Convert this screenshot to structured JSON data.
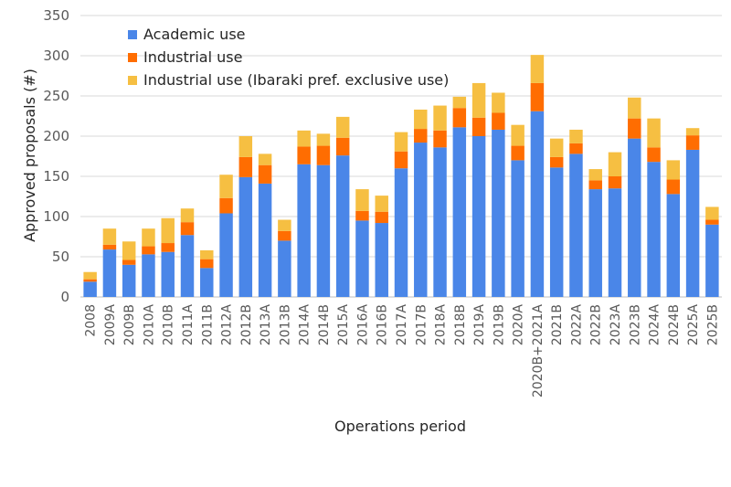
{
  "chart_data": {
    "type": "bar",
    "stacked": true,
    "title": "",
    "xlabel": "Operations period",
    "ylabel": "Approved proposals (#)",
    "ylim": [
      0,
      350
    ],
    "yticks": [
      0,
      50,
      100,
      150,
      200,
      250,
      300,
      350
    ],
    "grid": true,
    "legend_position": "top-left",
    "categories": [
      "2008",
      "2009A",
      "2009B",
      "2010A",
      "2010B",
      "2011A",
      "2011B",
      "2012A",
      "2012B",
      "2013A",
      "2013B",
      "2014A",
      "2014B",
      "2015A",
      "2016A",
      "2016B",
      "2017A",
      "2017B",
      "2018A",
      "2018B",
      "2019A",
      "2019B",
      "2020A",
      "2020B+2021A",
      "2021B",
      "2022A",
      "2022B",
      "2023A",
      "2023B",
      "2024A",
      "2024B",
      "2025A",
      "2025B"
    ],
    "series": [
      {
        "name": "Academic use",
        "color": "#4a86e8",
        "values": [
          19,
          59,
          40,
          53,
          56,
          77,
          36,
          104,
          149,
          141,
          70,
          165,
          164,
          176,
          95,
          92,
          160,
          192,
          186,
          211,
          200,
          208,
          170,
          231,
          161,
          178,
          134,
          135,
          197,
          168,
          128,
          183,
          90
        ]
      },
      {
        "name": "Industrial use",
        "color": "#ff6d01",
        "values": [
          3,
          6,
          6,
          10,
          11,
          16,
          11,
          19,
          25,
          23,
          12,
          22,
          24,
          22,
          12,
          14,
          21,
          17,
          21,
          24,
          23,
          21,
          18,
          35,
          13,
          13,
          11,
          15,
          25,
          18,
          18,
          18,
          6
        ]
      },
      {
        "name": "Industrial use (Ibaraki pref. exclusive use)",
        "color": "#f6bf42",
        "values": [
          9,
          20,
          23,
          22,
          31,
          17,
          11,
          29,
          26,
          14,
          14,
          20,
          15,
          26,
          27,
          20,
          24,
          24,
          31,
          14,
          43,
          25,
          26,
          35,
          23,
          17,
          14,
          30,
          26,
          36,
          24,
          9,
          16
        ]
      }
    ]
  }
}
